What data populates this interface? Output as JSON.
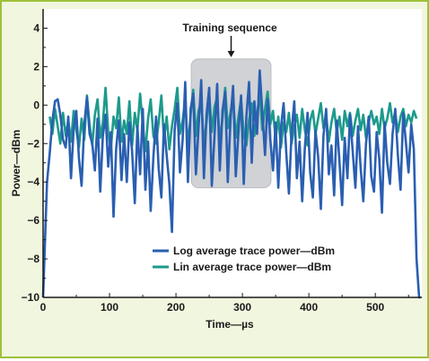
{
  "chart_data": {
    "type": "line",
    "xlabel": "Time—µs",
    "ylabel": "Power—dBm",
    "xlim": [
      0,
      570
    ],
    "ylim": [
      -10,
      5
    ],
    "x_ticks": [
      "0",
      "100",
      "200",
      "300",
      "400",
      "500"
    ],
    "x_tick_values": [
      0,
      100,
      200,
      300,
      400,
      500
    ],
    "y_ticks": [
      "4",
      "2",
      "0",
      "−2",
      "−4",
      "−6",
      "−8",
      "−10"
    ],
    "y_tick_values": [
      4,
      2,
      0,
      -2,
      -4,
      -6,
      -8,
      -10
    ],
    "grid": false,
    "legend_position": "bottom-center",
    "annotation": {
      "text": "Training sequence",
      "region_x": [
        223,
        343
      ],
      "region_y": [
        -4.3,
        2.4
      ],
      "color": "#d0d2d6"
    },
    "series": [
      {
        "name": "Log average trace power—dBm",
        "color": "#2a5fb1",
        "x": [
          0,
          3,
          6,
          10,
          14,
          18,
          22,
          26,
          30,
          34,
          38,
          42,
          46,
          50,
          54,
          58,
          62,
          66,
          70,
          74,
          78,
          82,
          86,
          90,
          94,
          98,
          102,
          106,
          110,
          114,
          118,
          122,
          126,
          130,
          134,
          138,
          142,
          146,
          150,
          154,
          158,
          162,
          166,
          170,
          174,
          178,
          182,
          186,
          190,
          194,
          198,
          202,
          206,
          210,
          214,
          218,
          222,
          226,
          230,
          234,
          238,
          242,
          246,
          250,
          254,
          258,
          262,
          266,
          270,
          274,
          278,
          282,
          286,
          290,
          294,
          298,
          302,
          306,
          310,
          314,
          318,
          322,
          326,
          330,
          334,
          338,
          342,
          346,
          350,
          354,
          358,
          362,
          366,
          370,
          374,
          378,
          382,
          386,
          390,
          394,
          398,
          402,
          406,
          410,
          414,
          418,
          422,
          426,
          430,
          434,
          438,
          442,
          446,
          450,
          454,
          458,
          462,
          466,
          470,
          474,
          478,
          482,
          486,
          490,
          494,
          498,
          502,
          506,
          510,
          514,
          518,
          522,
          526,
          530,
          534,
          538,
          542,
          546,
          550,
          554,
          558,
          562,
          566,
          568
        ],
        "y": [
          -10,
          -7,
          -4,
          -2.5,
          -0.8,
          0.2,
          0.3,
          -0.5,
          -1.8,
          -2.2,
          -0.6,
          -3.8,
          -1.2,
          -0.3,
          -2.8,
          -4.2,
          -1.0,
          0.4,
          -1.5,
          -2.0,
          -3.4,
          -0.7,
          -4.5,
          -1.6,
          -0.5,
          -3.2,
          -1.4,
          -5.8,
          -2.3,
          -0.8,
          -3.9,
          -1.5,
          -4.0,
          -0.9,
          -2.4,
          -5.1,
          -1.1,
          -3.6,
          -0.2,
          -4.4,
          -1.9,
          -5.5,
          -2.7,
          -0.6,
          -3.3,
          -4.8,
          -1.0,
          -2.6,
          -4.1,
          -6.6,
          -1.3,
          0.1,
          -3.5,
          -1.8,
          1.2,
          -4.0,
          -0.2,
          0.6,
          -3.6,
          -1.2,
          1.3,
          -3.8,
          -0.5,
          0.9,
          -4.2,
          -1.6,
          1.1,
          -3.4,
          -0.3,
          0.7,
          -4.0,
          -0.8,
          1.0,
          -3.7,
          -1.4,
          0.5,
          -4.1,
          -0.6,
          1.2,
          -3.0,
          0.2,
          -1.5,
          1.8,
          -0.4,
          -2.6,
          0.3,
          -1.8,
          -3.4,
          -0.9,
          -4.3,
          -1.2,
          0.1,
          -2.5,
          -4.6,
          -1.4,
          0.2,
          -3.8,
          -1.9,
          -5.0,
          -2.2,
          -0.4,
          -3.5,
          -4.8,
          -1.3,
          -2.7,
          -5.4,
          -1.6,
          -0.2,
          -3.6,
          -2.1,
          -4.7,
          -0.8,
          -2.9,
          -5.2,
          -1.7,
          -3.8,
          -0.5,
          -2.4,
          -4.3,
          -1.1,
          -3.3,
          -5.0,
          -2.0,
          -0.6,
          -3.7,
          -4.5,
          -1.4,
          -2.8,
          -5.6,
          -0.9,
          -3.0,
          -4.1,
          -1.5,
          -0.2,
          -2.6,
          -4.4,
          -0.4,
          -1.9,
          -3.5,
          -1.0,
          -2.3,
          -8.0,
          -10,
          -10
        ]
      },
      {
        "name": "Lin average trace power—dBm",
        "color": "#1d9a8c",
        "x": [
          10,
          14,
          18,
          22,
          26,
          30,
          34,
          38,
          42,
          46,
          50,
          54,
          58,
          62,
          66,
          70,
          74,
          78,
          82,
          86,
          90,
          94,
          98,
          102,
          106,
          110,
          114,
          118,
          122,
          126,
          130,
          134,
          138,
          142,
          146,
          150,
          154,
          158,
          162,
          166,
          170,
          174,
          178,
          182,
          186,
          190,
          194,
          198,
          202,
          206,
          210,
          214,
          218,
          222,
          226,
          230,
          234,
          238,
          242,
          246,
          250,
          254,
          258,
          262,
          266,
          270,
          274,
          278,
          282,
          286,
          290,
          294,
          298,
          302,
          306,
          310,
          314,
          318,
          322,
          326,
          330,
          334,
          338,
          342,
          346,
          350,
          354,
          358,
          362,
          366,
          370,
          374,
          378,
          382,
          386,
          390,
          394,
          398,
          402,
          406,
          410,
          414,
          418,
          422,
          426,
          430,
          434,
          438,
          442,
          446,
          450,
          454,
          458,
          462,
          466,
          470,
          474,
          478,
          482,
          486,
          490,
          494,
          498,
          502,
          506,
          510,
          514,
          518,
          522,
          526,
          530,
          534,
          538,
          542,
          546,
          550,
          554,
          558,
          562
        ],
        "y": [
          -0.6,
          -1.5,
          -0.2,
          -1.1,
          -2.0,
          -0.4,
          -1.6,
          -0.8,
          -1.9,
          -0.3,
          -1.3,
          -2.2,
          -0.7,
          -1.8,
          0.5,
          -1.0,
          -2.1,
          -0.5,
          0.3,
          -1.7,
          -0.9,
          0.9,
          -1.4,
          -2.3,
          -0.6,
          -1.2,
          0.4,
          -1.9,
          -0.8,
          -1.5,
          0.2,
          -2.1,
          -0.4,
          -1.3,
          0.6,
          -1.0,
          -2.4,
          -0.7,
          0.3,
          -1.6,
          -2.0,
          -0.9,
          0.5,
          -1.8,
          -0.6,
          -2.3,
          -1.1,
          -0.2,
          0.9,
          -1.5,
          -0.8,
          0.3,
          -2.2,
          -0.5,
          0.8,
          -1.6,
          -0.3,
          0.2,
          -2.0,
          -0.9,
          0.6,
          -1.4,
          -0.1,
          0.4,
          -1.9,
          -0.7,
          0.9,
          -1.2,
          -0.4,
          0.5,
          -1.7,
          -0.6,
          0.3,
          -1.5,
          -2.1,
          -0.8,
          0.1,
          -1.6,
          -0.5,
          0.6,
          -1.3,
          -0.2,
          0.7,
          -1.0,
          -0.3,
          -1.8,
          -0.6,
          -2.2,
          -0.9,
          -1.4,
          -0.4,
          -2.0,
          -1.1,
          -0.5,
          -1.7,
          -0.2,
          -1.3,
          -2.1,
          -0.8,
          -0.3,
          -1.5,
          -0.7,
          0.1,
          -1.2,
          -0.5,
          -1.9,
          -0.9,
          -0.2,
          -1.4,
          -0.6,
          -1.8,
          -0.3,
          -1.1,
          -0.4,
          -1.6,
          -0.8,
          -0.2,
          -1.3,
          -0.5,
          -1.7,
          -0.9,
          -0.3,
          -1.0,
          -0.6,
          -1.5,
          -0.2,
          -1.2,
          -0.7,
          0.1,
          -0.9,
          -0.4,
          -1.4,
          -0.6,
          -0.2,
          -1.1,
          -0.5,
          -0.9,
          -0.3,
          -0.7
        ]
      }
    ]
  }
}
